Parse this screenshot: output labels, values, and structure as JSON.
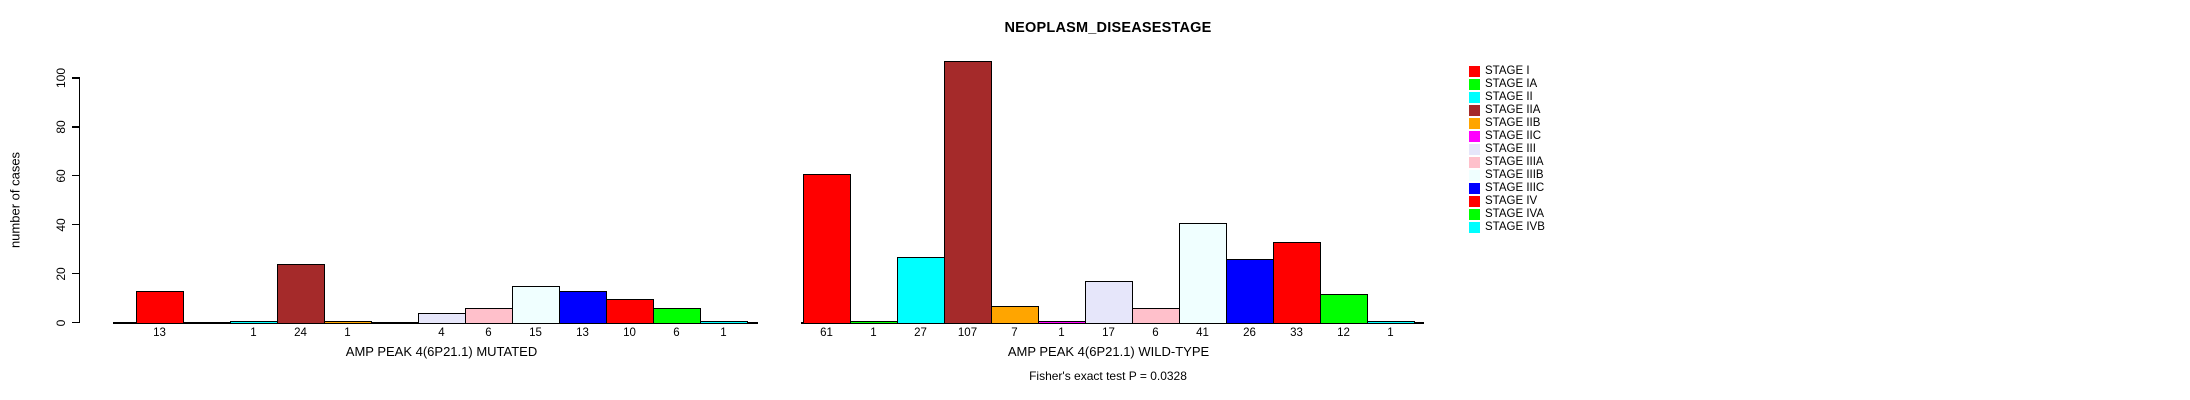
{
  "title": "NEOPLASM_DISEASESTAGE",
  "footer": "Fisher's exact test P = 0.0328",
  "y_axis": {
    "label": "number of cases"
  },
  "legend": {
    "entries": [
      {
        "label": "STAGE I",
        "color": "#FF0000"
      },
      {
        "label": "STAGE IA",
        "color": "#00FF00"
      },
      {
        "label": "STAGE II",
        "color": "#00FFFF"
      },
      {
        "label": "STAGE IIA",
        "color": "#A52A2A"
      },
      {
        "label": "STAGE IIB",
        "color": "#FFA500"
      },
      {
        "label": "STAGE IIC",
        "color": "#FF00FF"
      },
      {
        "label": "STAGE III",
        "color": "#E6E6FA"
      },
      {
        "label": "STAGE IIIA",
        "color": "#FFC0CB"
      },
      {
        "label": "STAGE IIIB",
        "color": "#F0FFFF"
      },
      {
        "label": "STAGE IIIC",
        "color": "#0000FF"
      },
      {
        "label": "STAGE IV",
        "color": "#FF0000"
      },
      {
        "label": "STAGE IVA",
        "color": "#00FF00"
      },
      {
        "label": "STAGE IVB",
        "color": "#00FFFF"
      }
    ]
  },
  "chart_data": {
    "type": "bar",
    "title": "NEOPLASM_DISEASESTAGE",
    "ylabel": "number of cases",
    "ylim": [
      0,
      100
    ],
    "yticks": [
      0,
      20,
      40,
      60,
      80,
      100
    ],
    "grid": false,
    "legend_position": "right",
    "annotation": "Fisher's exact test P = 0.0328",
    "categories": [
      "STAGE I",
      "STAGE IA",
      "STAGE II",
      "STAGE IIA",
      "STAGE IIB",
      "STAGE IIC",
      "STAGE III",
      "STAGE IIIA",
      "STAGE IIIB",
      "STAGE IIIC",
      "STAGE IV",
      "STAGE IVA",
      "STAGE IVB"
    ],
    "bar_colors": [
      "#FF0000",
      "#00FF00",
      "#00FFFF",
      "#A52A2A",
      "#FFA500",
      "#FF00FF",
      "#E6E6FA",
      "#FFC0CB",
      "#F0FFFF",
      "#0000FF",
      "#FF0000",
      "#00FF00",
      "#00FFFF"
    ],
    "series": [
      {
        "name": "AMP PEAK 4(6P21.1) MUTATED",
        "values": [
          13,
          0,
          1,
          24,
          1,
          0,
          4,
          6,
          15,
          13,
          10,
          6,
          1
        ]
      },
      {
        "name": "AMP PEAK 4(6P21.1) WILD-TYPE",
        "values": [
          61,
          1,
          27,
          107,
          7,
          1,
          17,
          6,
          41,
          26,
          33,
          12,
          1
        ]
      }
    ]
  }
}
